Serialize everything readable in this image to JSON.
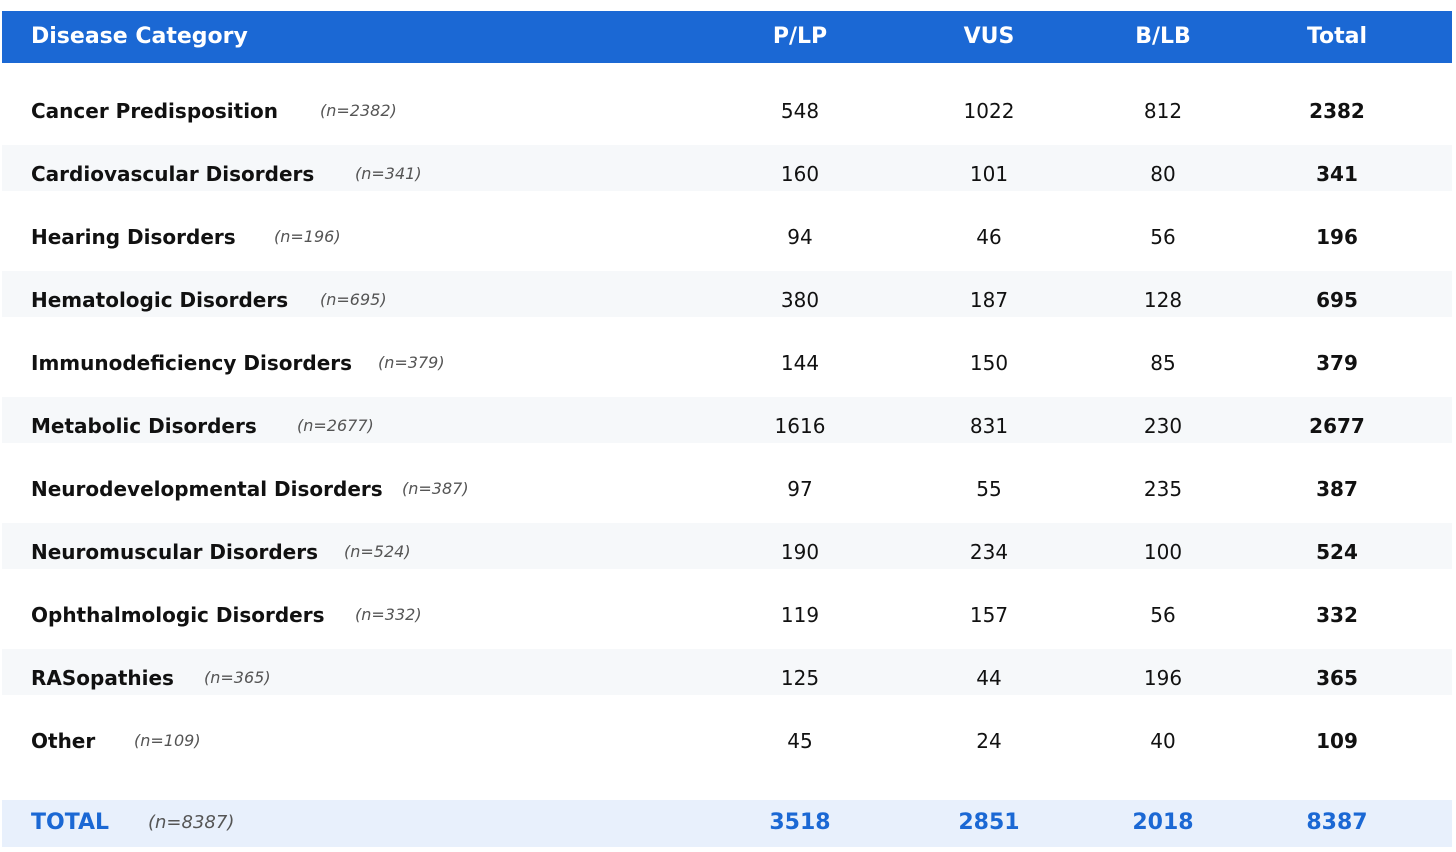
{
  "chart_data": {
    "type": "table",
    "columns": [
      "Disease Category",
      "P/LP",
      "VUS",
      "B/LB",
      "Total"
    ],
    "rows": [
      {
        "category": "Cancer Predisposition",
        "n_label": "(n=2382)",
        "plp": "548",
        "vus": "1022",
        "blb": "812",
        "total": "2382"
      },
      {
        "category": "Cardiovascular Disorders",
        "n_label": "(n=341)",
        "plp": "160",
        "vus": "101",
        "blb": "80",
        "total": "341"
      },
      {
        "category": "Hearing Disorders",
        "n_label": "(n=196)",
        "plp": "94",
        "vus": "46",
        "blb": "56",
        "total": "196"
      },
      {
        "category": "Hematologic Disorders",
        "n_label": "(n=695)",
        "plp": "380",
        "vus": "187",
        "blb": "128",
        "total": "695"
      },
      {
        "category": "Immunodeficiency Disorders",
        "n_label": "(n=379)",
        "plp": "144",
        "vus": "150",
        "blb": "85",
        "total": "379"
      },
      {
        "category": "Metabolic Disorders",
        "n_label": "(n=2677)",
        "plp": "1616",
        "vus": "831",
        "blb": "230",
        "total": "2677"
      },
      {
        "category": "Neurodevelopmental Disorders",
        "n_label": "(n=387)",
        "plp": "97",
        "vus": "55",
        "blb": "235",
        "total": "387"
      },
      {
        "category": "Neuromuscular Disorders",
        "n_label": "(n=524)",
        "plp": "190",
        "vus": "234",
        "blb": "100",
        "total": "524"
      },
      {
        "category": "Ophthalmologic Disorders",
        "n_label": "(n=332)",
        "plp": "119",
        "vus": "157",
        "blb": "56",
        "total": "332"
      },
      {
        "category": "RASopathies",
        "n_label": "(n=365)",
        "plp": "125",
        "vus": "44",
        "blb": "196",
        "total": "365"
      },
      {
        "category": "Other",
        "n_label": "(n=109)",
        "plp": "45",
        "vus": "24",
        "blb": "40",
        "total": "109"
      }
    ],
    "total_row": {
      "category": "TOTAL",
      "n_label": "(n=8387)",
      "plp": "3518",
      "vus": "2851",
      "blb": "2018",
      "total": "8387"
    }
  },
  "colors": {
    "header_bg": "#1b68d4",
    "header_text": "#ffffff",
    "band_bg": "#f6f8fa",
    "total_bg": "#e8f0fc",
    "total_text": "#1b68d4",
    "ncount_text": "#555555"
  }
}
